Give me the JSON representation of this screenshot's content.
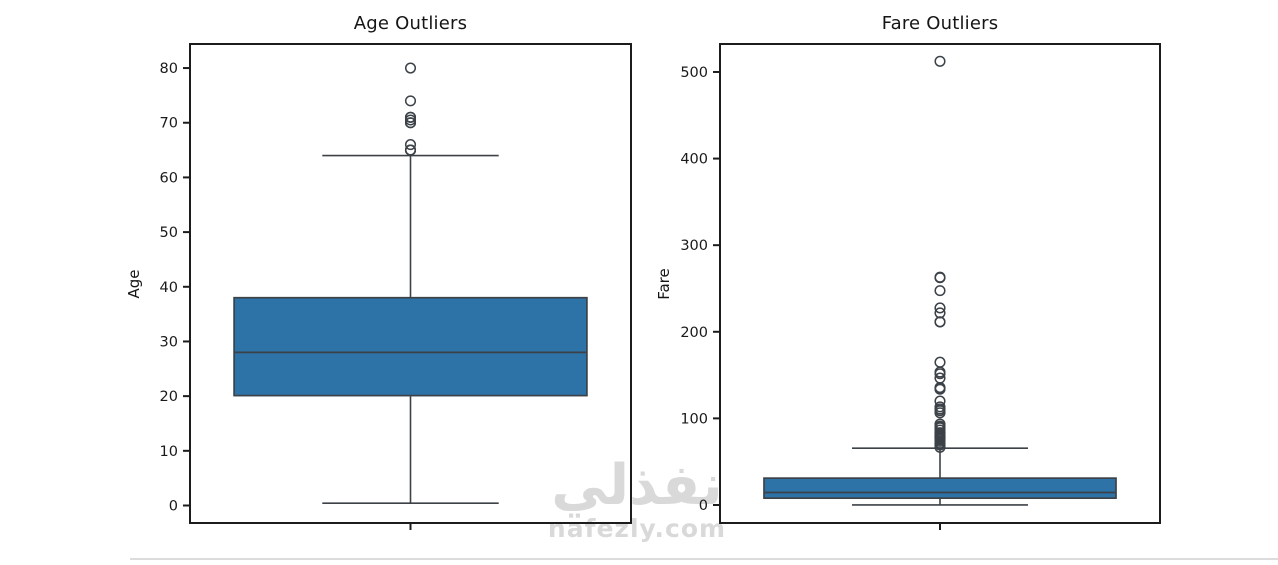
{
  "colors": {
    "box_fill": "#2d73a8",
    "box_edge": "#3c4248",
    "spine": "#1c1c1c",
    "tick_label": "#1a1a1a",
    "watermark": "#d9d9d9",
    "divider": "#dcdcdc"
  },
  "watermark": {
    "brand_text": "نفذلي",
    "domain_text": "nafezly.com"
  },
  "chart_data": [
    {
      "type": "box",
      "title": "Age Outliers",
      "ylabel": "Age",
      "xlabel": "",
      "grid": false,
      "yticks": [
        0,
        10,
        20,
        30,
        40,
        50,
        60,
        70,
        80
      ],
      "ylim": [
        -3.2,
        84.4
      ],
      "box": {
        "q1": 20.1,
        "median": 28,
        "q3": 38,
        "whisker_low": 0.42,
        "whisker_high": 64
      },
      "outliers": [
        65,
        65,
        65,
        66,
        70,
        70,
        70.5,
        71,
        71,
        74,
        80
      ]
    },
    {
      "type": "box",
      "title": "Fare Outliers",
      "ylabel": "Fare",
      "xlabel": "",
      "grid": false,
      "yticks": [
        0,
        100,
        200,
        300,
        400,
        500
      ],
      "ylim": [
        -20.8,
        532.3
      ],
      "box": {
        "q1": 7.91,
        "median": 14.45,
        "q3": 31,
        "whisker_low": 0,
        "whisker_high": 65.6
      },
      "outliers": [
        512.33,
        263,
        262.38,
        247.52,
        227.53,
        221.78,
        211.5,
        211.34,
        164.87,
        153.46,
        151.55,
        146.52,
        135.63,
        134.5,
        133.65,
        120,
        113.28,
        110.88,
        108.9,
        106.43,
        93.5,
        91.08,
        90,
        89.1,
        86.5,
        83.48,
        83.16,
        82.17,
        81.86,
        80,
        79.65,
        79.2,
        78.85,
        78.27,
        77.96,
        77.29,
        76.73,
        76.29,
        75.25,
        73.5,
        71.28,
        71,
        69.55,
        69.3,
        66.6
      ]
    }
  ]
}
